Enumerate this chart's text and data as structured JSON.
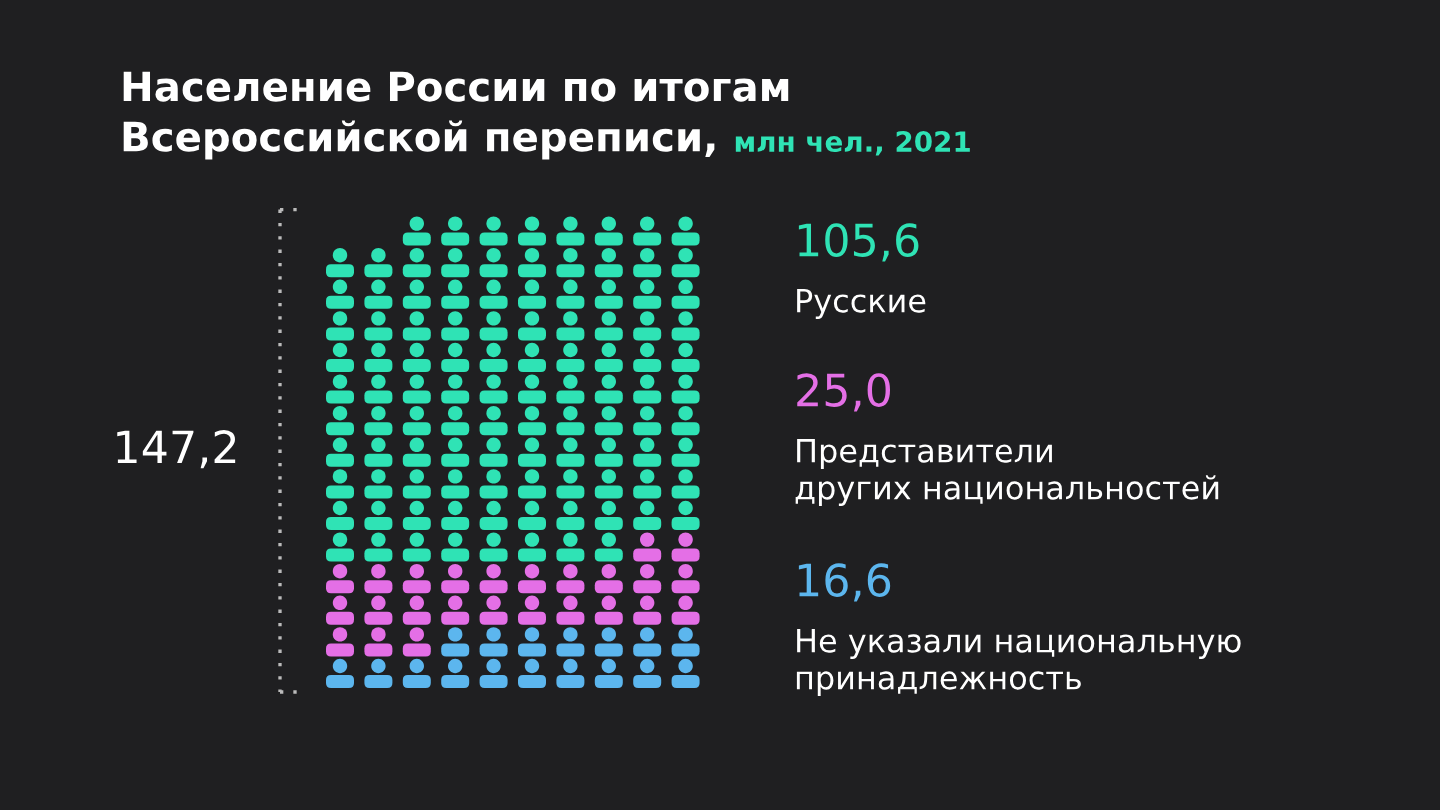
{
  "chart_data": {
    "type": "other",
    "title": "Население России по итогам\nВсероссийской переписи,",
    "subtitle": "млн чел., 2021",
    "categories": [
      "Русские",
      "Представители\nдругих национальностей",
      "Не указали национальную\nпринадлежность"
    ],
    "values": [
      105.6,
      25.0,
      16.6
    ],
    "value_labels": [
      "105,6",
      "25,0",
      "16,6"
    ],
    "colors": [
      "#2fe3b5",
      "#e46fe6",
      "#5cb6ee"
    ],
    "annotations": [
      "147,2"
    ]
  }
}
